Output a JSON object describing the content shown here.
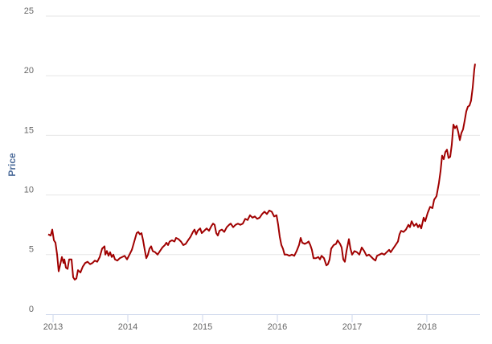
{
  "chart_data": {
    "type": "line",
    "y_label": "Price",
    "color": "#a00000",
    "grid": true,
    "xlim": [
      2012.903,
      2018.71
    ],
    "xticks": [
      2013,
      2014,
      2015,
      2016,
      2017,
      2018
    ],
    "ylim": [
      0,
      25
    ],
    "yticks": [
      0,
      5,
      10,
      15,
      20,
      25
    ],
    "x": [
      2012.935,
      2012.968,
      2012.989,
      2013.011,
      2013.032,
      2013.054,
      2013.075,
      2013.097,
      2013.118,
      2013.14,
      2013.151,
      2013.172,
      2013.194,
      2013.215,
      2013.247,
      2013.269,
      2013.29,
      2013.312,
      2013.333,
      2013.366,
      2013.398,
      2013.43,
      2013.462,
      2013.495,
      2013.527,
      2013.559,
      2013.591,
      2013.624,
      2013.656,
      2013.688,
      2013.699,
      2013.72,
      2013.742,
      2013.763,
      2013.785,
      2013.806,
      2013.828,
      2013.86,
      2013.892,
      2013.925,
      2013.957,
      2013.989,
      2014.022,
      2014.054,
      2014.086,
      2014.118,
      2014.14,
      2014.161,
      2014.183,
      2014.204,
      2014.226,
      2014.247,
      2014.269,
      2014.29,
      2014.312,
      2014.333,
      2014.366,
      2014.398,
      2014.43,
      2014.462,
      2014.495,
      2014.516,
      2014.538,
      2014.559,
      2014.591,
      2014.624,
      2014.645,
      2014.677,
      2014.71,
      2014.742,
      2014.774,
      2014.806,
      2014.839,
      2014.871,
      2014.892,
      2014.914,
      2014.935,
      2014.968,
      2014.989,
      2015.022,
      2015.054,
      2015.086,
      2015.118,
      2015.14,
      2015.161,
      2015.183,
      2015.204,
      2015.226,
      2015.258,
      2015.29,
      2015.323,
      2015.355,
      2015.376,
      2015.409,
      2015.441,
      2015.473,
      2015.505,
      2015.538,
      2015.57,
      2015.602,
      2015.634,
      2015.667,
      2015.699,
      2015.731,
      2015.763,
      2015.796,
      2015.828,
      2015.86,
      2015.892,
      2015.925,
      2015.957,
      2015.989,
      2016.011,
      2016.032,
      2016.054,
      2016.075,
      2016.097,
      2016.129,
      2016.161,
      2016.194,
      2016.226,
      2016.258,
      2016.29,
      2016.312,
      2016.333,
      2016.366,
      2016.398,
      2016.419,
      2016.441,
      2016.462,
      2016.484,
      2016.516,
      2016.548,
      2016.57,
      2016.591,
      2016.624,
      2016.656,
      2016.677,
      2016.699,
      2016.72,
      2016.753,
      2016.785,
      2016.806,
      2016.839,
      2016.86,
      2016.882,
      2016.903,
      2016.925,
      2016.957,
      2016.978,
      2017.0,
      2017.032,
      2017.065,
      2017.097,
      2017.129,
      2017.161,
      2017.194,
      2017.226,
      2017.258,
      2017.29,
      2017.312,
      2017.333,
      2017.366,
      2017.398,
      2017.43,
      2017.462,
      2017.495,
      2017.516,
      2017.548,
      2017.581,
      2017.613,
      2017.634,
      2017.656,
      2017.688,
      2017.72,
      2017.753,
      2017.774,
      2017.796,
      2017.828,
      2017.86,
      2017.882,
      2017.903,
      2017.925,
      2017.957,
      2017.978,
      2018.011,
      2018.043,
      2018.075,
      2018.097,
      2018.129,
      2018.161,
      2018.183,
      2018.204,
      2018.226,
      2018.247,
      2018.269,
      2018.29,
      2018.312,
      2018.333,
      2018.355,
      2018.376,
      2018.398,
      2018.419,
      2018.441,
      2018.462,
      2018.484,
      2018.505,
      2018.527,
      2018.548,
      2018.57,
      2018.591,
      2018.613,
      2018.634,
      2018.645
    ],
    "values": [
      6.7,
      6.6,
      7.1,
      6.2,
      6.0,
      5.0,
      3.6,
      4.2,
      4.8,
      4.3,
      4.6,
      3.9,
      3.8,
      4.6,
      4.6,
      3.1,
      2.9,
      3.0,
      3.7,
      3.5,
      4.0,
      4.3,
      4.4,
      4.2,
      4.3,
      4.5,
      4.4,
      4.8,
      5.5,
      5.7,
      5.0,
      5.3,
      4.9,
      5.2,
      4.8,
      5.0,
      4.6,
      4.5,
      4.7,
      4.8,
      4.9,
      4.6,
      5.0,
      5.4,
      6.1,
      6.8,
      6.9,
      6.7,
      6.8,
      6.2,
      5.4,
      4.7,
      5.0,
      5.5,
      5.7,
      5.3,
      5.2,
      5.0,
      5.3,
      5.6,
      5.8,
      6.0,
      5.8,
      6.1,
      6.2,
      6.1,
      6.4,
      6.3,
      6.1,
      5.8,
      5.9,
      6.2,
      6.5,
      6.9,
      7.1,
      6.7,
      7.0,
      7.2,
      6.8,
      7.0,
      7.2,
      7.0,
      7.4,
      7.6,
      7.5,
      6.8,
      6.6,
      7.0,
      7.1,
      6.9,
      7.3,
      7.5,
      7.6,
      7.3,
      7.5,
      7.6,
      7.5,
      7.6,
      8.0,
      7.9,
      8.3,
      8.1,
      8.2,
      8.0,
      8.1,
      8.4,
      8.6,
      8.4,
      8.7,
      8.6,
      8.2,
      8.3,
      7.5,
      6.5,
      5.8,
      5.5,
      5.0,
      5.0,
      4.9,
      5.0,
      4.9,
      5.3,
      5.8,
      6.4,
      6.0,
      5.9,
      6.0,
      6.1,
      5.8,
      5.4,
      4.7,
      4.7,
      4.8,
      4.6,
      4.9,
      4.7,
      4.1,
      4.2,
      4.6,
      5.5,
      5.8,
      5.9,
      6.2,
      5.9,
      5.6,
      4.6,
      4.4,
      5.3,
      6.3,
      5.5,
      5.0,
      5.3,
      5.2,
      5.0,
      5.6,
      5.3,
      4.9,
      5.0,
      4.8,
      4.6,
      4.5,
      4.9,
      5.0,
      5.1,
      5.0,
      5.2,
      5.4,
      5.2,
      5.5,
      5.8,
      6.1,
      6.7,
      7.0,
      6.9,
      7.1,
      7.5,
      7.3,
      7.8,
      7.4,
      7.6,
      7.3,
      7.5,
      7.2,
      8.1,
      7.8,
      8.5,
      9.0,
      8.9,
      9.6,
      9.9,
      11.0,
      12.0,
      13.3,
      13.0,
      13.6,
      13.8,
      13.1,
      13.2,
      14.2,
      15.9,
      15.6,
      15.8,
      15.3,
      14.6,
      15.2,
      15.5,
      16.2,
      17.0,
      17.4,
      17.5,
      17.9,
      19.0,
      20.5,
      21.0
    ]
  }
}
